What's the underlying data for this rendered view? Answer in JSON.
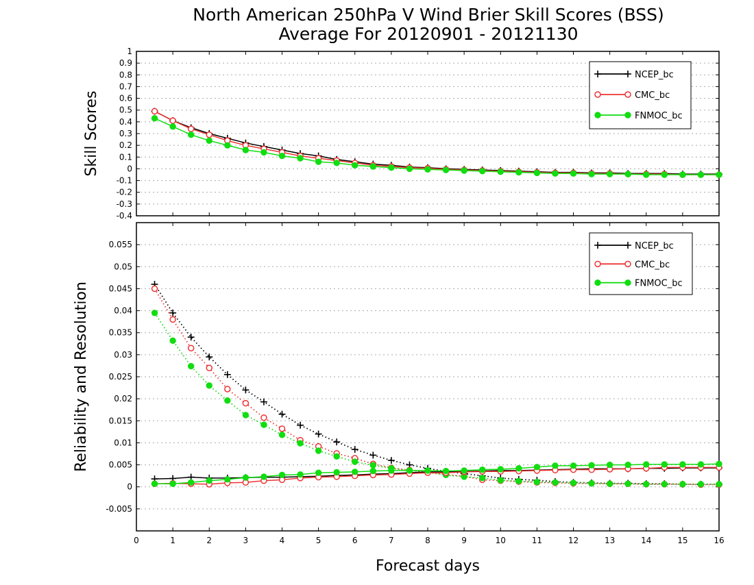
{
  "title_line1": "North American 250hPa V Wind Brier Skill Scores (BSS)",
  "title_line2": "Average For 20120901 - 20121130",
  "colors": {
    "NCEP_bc": "#000000",
    "CMC_bc": "#ee3333",
    "FNMOC_bc": "#11dd11"
  },
  "chart_data": [
    {
      "type": "line",
      "panel": "top",
      "ylabel": "Skill Scores",
      "xlabel": "",
      "xlim": [
        0,
        16
      ],
      "ylim": [
        -0.4,
        1
      ],
      "x_ticks": [
        0,
        1,
        2,
        3,
        4,
        5,
        6,
        7,
        8,
        9,
        10,
        11,
        12,
        13,
        14,
        15,
        16
      ],
      "x_tick_labels": [
        "",
        "",
        "",
        "",
        "",
        "",
        "",
        "",
        "",
        "",
        "",
        "",
        "",
        "",
        "",
        "",
        ""
      ],
      "y_ticks": [
        -0.4,
        -0.3,
        -0.2,
        -0.1,
        0,
        0.1,
        0.2,
        0.3,
        0.4,
        0.5,
        0.6,
        0.7,
        0.8,
        0.9,
        1
      ],
      "y_tick_labels": [
        "-0.4",
        "-0.3",
        "-0.2",
        "-0.1",
        "0",
        "0.1",
        "0.2",
        "0.3",
        "0.4",
        "0.5",
        "0.6",
        "0.7",
        "0.8",
        "0.9",
        "1"
      ],
      "grid": true,
      "legend": "top-right",
      "x": [
        0.5,
        1,
        1.5,
        2,
        2.5,
        3,
        3.5,
        4,
        4.5,
        5,
        5.5,
        6,
        6.5,
        7,
        7.5,
        8,
        8.5,
        9,
        9.5,
        10,
        10.5,
        11,
        11.5,
        12,
        12.5,
        13,
        13.5,
        14,
        14.5,
        15,
        15.5,
        16
      ],
      "series": [
        {
          "name": "NCEP_bc",
          "color": "#000000",
          "marker": "plus",
          "style": "solid",
          "values": [
            0.49,
            0.41,
            0.35,
            0.3,
            0.26,
            0.22,
            0.19,
            0.16,
            0.13,
            0.11,
            0.08,
            0.06,
            0.04,
            0.03,
            0.015,
            0.01,
            0.0,
            -0.005,
            -0.01,
            -0.015,
            -0.02,
            -0.025,
            -0.03,
            -0.03,
            -0.035,
            -0.035,
            -0.04,
            -0.04,
            -0.04,
            -0.045,
            -0.045,
            -0.045
          ]
        },
        {
          "name": "CMC_bc",
          "color": "#ee3333",
          "marker": "circle-open",
          "style": "solid",
          "values": [
            0.49,
            0.41,
            0.34,
            0.29,
            0.24,
            0.2,
            0.17,
            0.14,
            0.11,
            0.09,
            0.07,
            0.05,
            0.03,
            0.02,
            0.01,
            0.005,
            -0.005,
            -0.01,
            -0.015,
            -0.02,
            -0.025,
            -0.03,
            -0.035,
            -0.035,
            -0.04,
            -0.04,
            -0.045,
            -0.045,
            -0.045,
            -0.05,
            -0.05,
            -0.05
          ]
        },
        {
          "name": "FNMOC_bc",
          "color": "#11dd11",
          "marker": "circle-filled",
          "style": "solid",
          "values": [
            0.43,
            0.36,
            0.29,
            0.24,
            0.2,
            0.16,
            0.14,
            0.11,
            0.09,
            0.06,
            0.05,
            0.03,
            0.02,
            0.01,
            0.0,
            -0.005,
            -0.01,
            -0.015,
            -0.02,
            -0.025,
            -0.03,
            -0.035,
            -0.04,
            -0.04,
            -0.045,
            -0.045,
            -0.045,
            -0.05,
            -0.05,
            -0.05,
            -0.05,
            -0.05
          ]
        }
      ]
    },
    {
      "type": "line",
      "panel": "bottom",
      "ylabel": "Reliability and Resolution",
      "xlabel": "Forecast days",
      "xlim": [
        0,
        16
      ],
      "ylim": [
        -0.01,
        0.06
      ],
      "x_ticks": [
        0,
        1,
        2,
        3,
        4,
        5,
        6,
        7,
        8,
        9,
        10,
        11,
        12,
        13,
        14,
        15,
        16
      ],
      "x_tick_labels": [
        "0",
        "1",
        "2",
        "3",
        "4",
        "5",
        "6",
        "7",
        "8",
        "9",
        "10",
        "11",
        "12",
        "13",
        "14",
        "15",
        "16"
      ],
      "y_ticks": [
        -0.005,
        0,
        0.005,
        0.01,
        0.015,
        0.02,
        0.025,
        0.03,
        0.035,
        0.04,
        0.045,
        0.05,
        0.055
      ],
      "y_tick_labels": [
        "-0.005",
        "0",
        "0.005",
        "0.01",
        "0.015",
        "0.02",
        "0.025",
        "0.03",
        "0.035",
        "0.04",
        "0.045",
        "0.05",
        "0.055"
      ],
      "grid": true,
      "legend": "top-right",
      "x": [
        0.5,
        1,
        1.5,
        2,
        2.5,
        3,
        3.5,
        4,
        4.5,
        5,
        5.5,
        6,
        6.5,
        7,
        7.5,
        8,
        8.5,
        9,
        9.5,
        10,
        10.5,
        11,
        11.5,
        12,
        12.5,
        13,
        13.5,
        14,
        14.5,
        15,
        15.5,
        16
      ],
      "series": [
        {
          "name": "NCEP_bc",
          "role": "reliability",
          "color": "#000000",
          "marker": "plus",
          "style": "dotted",
          "values": [
            0.046,
            0.0395,
            0.034,
            0.0295,
            0.0255,
            0.022,
            0.0193,
            0.0165,
            0.014,
            0.012,
            0.0102,
            0.0085,
            0.0072,
            0.006,
            0.005,
            0.0042,
            0.0035,
            0.003,
            0.0025,
            0.002,
            0.0017,
            0.0015,
            0.0012,
            0.001,
            0.0009,
            0.0008,
            0.0008,
            0.0007,
            0.0007,
            0.0006,
            0.0006,
            0.0006
          ]
        },
        {
          "name": "CMC_bc",
          "role": "reliability",
          "color": "#ee3333",
          "marker": "circle-open",
          "style": "dotted",
          "values": [
            0.045,
            0.038,
            0.0315,
            0.027,
            0.0222,
            0.019,
            0.0157,
            0.0132,
            0.0106,
            0.0092,
            0.0076,
            0.0065,
            0.0052,
            0.0043,
            0.0038,
            0.0033,
            0.0028,
            0.0024,
            0.0016,
            0.0014,
            0.0012,
            0.001,
            0.0009,
            0.0008,
            0.0008,
            0.0007,
            0.0007,
            0.0006,
            0.0006,
            0.0006,
            0.0005,
            0.0005
          ]
        },
        {
          "name": "FNMOC_bc",
          "role": "reliability",
          "color": "#11dd11",
          "marker": "circle-filled",
          "style": "dotted",
          "values": [
            0.0395,
            0.0332,
            0.0274,
            0.023,
            0.0196,
            0.0163,
            0.0141,
            0.0118,
            0.0099,
            0.0082,
            0.0069,
            0.0057,
            0.0049,
            0.0042,
            0.0037,
            0.0033,
            0.0027,
            0.0023,
            0.002,
            0.0015,
            0.0013,
            0.0011,
            0.001,
            0.0009,
            0.0008,
            0.0007,
            0.0007,
            0.0006,
            0.0006,
            0.0006,
            0.0006,
            0.0006
          ]
        },
        {
          "name": "NCEP_bc",
          "role": "resolution",
          "color": "#000000",
          "marker": "plus",
          "style": "solid",
          "values": [
            0.0018,
            0.0019,
            0.0022,
            0.002,
            0.002,
            0.0021,
            0.0022,
            0.0022,
            0.0023,
            0.0024,
            0.0026,
            0.0027,
            0.0029,
            0.003,
            0.0032,
            0.0034,
            0.0034,
            0.0035,
            0.0036,
            0.0037,
            0.0037,
            0.0038,
            0.0039,
            0.004,
            0.0041,
            0.0041,
            0.0041,
            0.0042,
            0.0042,
            0.0043,
            0.0043,
            0.0043
          ]
        },
        {
          "name": "CMC_bc",
          "role": "resolution",
          "color": "#ee3333",
          "marker": "circle-open",
          "style": "solid",
          "values": [
            0.0007,
            0.0008,
            0.0007,
            0.0006,
            0.0009,
            0.001,
            0.0014,
            0.0016,
            0.002,
            0.0022,
            0.0023,
            0.0025,
            0.0027,
            0.0028,
            0.003,
            0.0032,
            0.0032,
            0.0034,
            0.0035,
            0.0035,
            0.0036,
            0.0037,
            0.0038,
            0.0039,
            0.0039,
            0.004,
            0.0041,
            0.0042,
            0.0044,
            0.0044,
            0.0044,
            0.0044
          ]
        },
        {
          "name": "FNMOC_bc",
          "role": "resolution",
          "color": "#11dd11",
          "marker": "circle-filled",
          "style": "solid",
          "values": [
            0.0007,
            0.0007,
            0.001,
            0.0014,
            0.0017,
            0.0021,
            0.0023,
            0.0027,
            0.0028,
            0.0032,
            0.0033,
            0.0034,
            0.0036,
            0.0037,
            0.0037,
            0.0037,
            0.0036,
            0.0037,
            0.0039,
            0.004,
            0.0042,
            0.0045,
            0.0048,
            0.0048,
            0.0049,
            0.005,
            0.005,
            0.0051,
            0.0051,
            0.0051,
            0.0051,
            0.0052
          ]
        }
      ]
    }
  ]
}
